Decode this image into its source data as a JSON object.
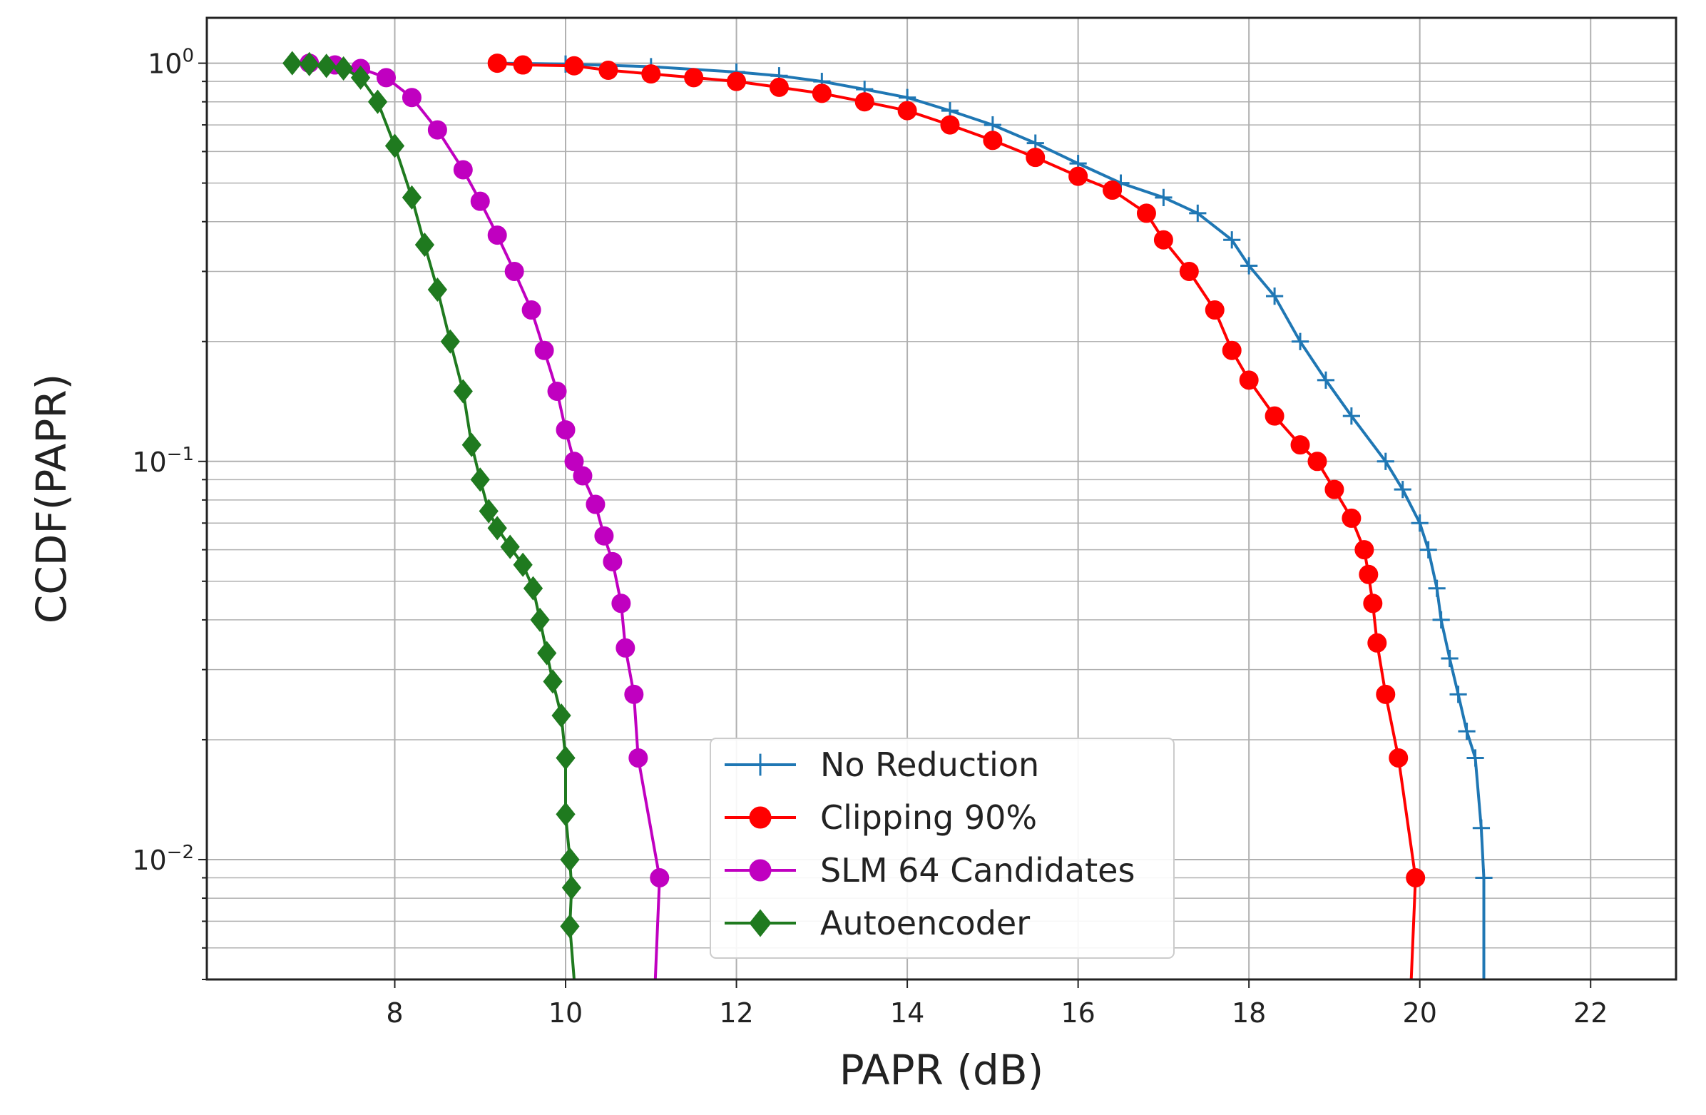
{
  "chart_data": {
    "type": "line",
    "title": "",
    "xlabel": "PAPR (dB)",
    "ylabel": "CCDF(PAPR)",
    "xscale": "linear",
    "yscale": "log",
    "xlim": [
      5.8,
      23.0
    ],
    "ylim": [
      0.005,
      1.3
    ],
    "grid": true,
    "legend_position": "bottom-center",
    "xticks": [
      8,
      10,
      12,
      14,
      16,
      18,
      20,
      22
    ],
    "yticks": [
      {
        "value": 1,
        "base": "10",
        "exp": "0"
      },
      {
        "value": 0.1,
        "base": "10",
        "exp": "−1"
      },
      {
        "value": 0.01,
        "base": "10",
        "exp": "−2"
      }
    ],
    "series": [
      {
        "name": "No Reduction",
        "color": "#1f77b4",
        "marker": "plus",
        "points": [
          [
            9.2,
            1.0
          ],
          [
            10.0,
            0.995
          ],
          [
            11.0,
            0.98
          ],
          [
            12.0,
            0.95
          ],
          [
            12.5,
            0.93
          ],
          [
            13.0,
            0.9
          ],
          [
            13.5,
            0.86
          ],
          [
            14.0,
            0.82
          ],
          [
            14.5,
            0.76
          ],
          [
            15.0,
            0.7
          ],
          [
            15.5,
            0.63
          ],
          [
            16.0,
            0.56
          ],
          [
            16.5,
            0.5
          ],
          [
            17.0,
            0.46
          ],
          [
            17.4,
            0.42
          ],
          [
            17.8,
            0.36
          ],
          [
            18.0,
            0.31
          ],
          [
            18.3,
            0.26
          ],
          [
            18.6,
            0.2
          ],
          [
            18.9,
            0.16
          ],
          [
            19.2,
            0.13
          ],
          [
            19.6,
            0.1
          ],
          [
            19.8,
            0.085
          ],
          [
            20.0,
            0.07
          ],
          [
            20.1,
            0.06
          ],
          [
            20.2,
            0.048
          ],
          [
            20.25,
            0.04
          ],
          [
            20.35,
            0.032
          ],
          [
            20.45,
            0.026
          ],
          [
            20.55,
            0.021
          ],
          [
            20.65,
            0.018
          ],
          [
            20.72,
            0.012
          ],
          [
            20.75,
            0.009
          ],
          [
            20.75,
            0.005
          ]
        ]
      },
      {
        "name": "Clipping 90%",
        "color": "#ff0000",
        "marker": "circle",
        "points": [
          [
            9.2,
            1.0
          ],
          [
            9.5,
            0.99
          ],
          [
            10.1,
            0.985
          ],
          [
            10.5,
            0.96
          ],
          [
            11.0,
            0.94
          ],
          [
            11.5,
            0.92
          ],
          [
            12.0,
            0.9
          ],
          [
            12.5,
            0.87
          ],
          [
            13.0,
            0.84
          ],
          [
            13.5,
            0.8
          ],
          [
            14.0,
            0.76
          ],
          [
            14.5,
            0.7
          ],
          [
            15.0,
            0.64
          ],
          [
            15.5,
            0.58
          ],
          [
            16.0,
            0.52
          ],
          [
            16.4,
            0.48
          ],
          [
            16.8,
            0.42
          ],
          [
            17.0,
            0.36
          ],
          [
            17.3,
            0.3
          ],
          [
            17.6,
            0.24
          ],
          [
            17.8,
            0.19
          ],
          [
            18.0,
            0.16
          ],
          [
            18.3,
            0.13
          ],
          [
            18.6,
            0.11
          ],
          [
            18.8,
            0.1
          ],
          [
            19.0,
            0.085
          ],
          [
            19.2,
            0.072
          ],
          [
            19.35,
            0.06
          ],
          [
            19.4,
            0.052
          ],
          [
            19.45,
            0.044
          ],
          [
            19.5,
            0.035
          ],
          [
            19.6,
            0.026
          ],
          [
            19.75,
            0.018
          ],
          [
            19.95,
            0.009
          ],
          [
            19.9,
            0.005
          ]
        ]
      },
      {
        "name": "SLM 64 Candidates",
        "color": "#c000c0",
        "marker": "circle",
        "points": [
          [
            7.0,
            1.0
          ],
          [
            7.3,
            0.99
          ],
          [
            7.6,
            0.97
          ],
          [
            7.9,
            0.92
          ],
          [
            8.2,
            0.82
          ],
          [
            8.5,
            0.68
          ],
          [
            8.8,
            0.54
          ],
          [
            9.0,
            0.45
          ],
          [
            9.2,
            0.37
          ],
          [
            9.4,
            0.3
          ],
          [
            9.6,
            0.24
          ],
          [
            9.75,
            0.19
          ],
          [
            9.9,
            0.15
          ],
          [
            10.0,
            0.12
          ],
          [
            10.1,
            0.1
          ],
          [
            10.2,
            0.092
          ],
          [
            10.35,
            0.078
          ],
          [
            10.45,
            0.065
          ],
          [
            10.55,
            0.056
          ],
          [
            10.65,
            0.044
          ],
          [
            10.7,
            0.034
          ],
          [
            10.8,
            0.026
          ],
          [
            10.85,
            0.018
          ],
          [
            11.1,
            0.009
          ],
          [
            11.05,
            0.005
          ]
        ]
      },
      {
        "name": "Autoencoder",
        "color": "#1f7a1f",
        "marker": "diamond",
        "points": [
          [
            6.8,
            1.0
          ],
          [
            7.0,
            0.995
          ],
          [
            7.2,
            0.985
          ],
          [
            7.4,
            0.97
          ],
          [
            7.6,
            0.92
          ],
          [
            7.8,
            0.8
          ],
          [
            8.0,
            0.62
          ],
          [
            8.2,
            0.46
          ],
          [
            8.35,
            0.35
          ],
          [
            8.5,
            0.27
          ],
          [
            8.65,
            0.2
          ],
          [
            8.8,
            0.15
          ],
          [
            8.9,
            0.11
          ],
          [
            9.0,
            0.09
          ],
          [
            9.1,
            0.075
          ],
          [
            9.2,
            0.068
          ],
          [
            9.35,
            0.061
          ],
          [
            9.5,
            0.055
          ],
          [
            9.62,
            0.048
          ],
          [
            9.7,
            0.04
          ],
          [
            9.78,
            0.033
          ],
          [
            9.85,
            0.028
          ],
          [
            9.95,
            0.023
          ],
          [
            10.0,
            0.018
          ],
          [
            10.0,
            0.013
          ],
          [
            10.05,
            0.01
          ],
          [
            10.07,
            0.0085
          ],
          [
            10.05,
            0.0068
          ],
          [
            10.1,
            0.005
          ]
        ]
      }
    ]
  }
}
